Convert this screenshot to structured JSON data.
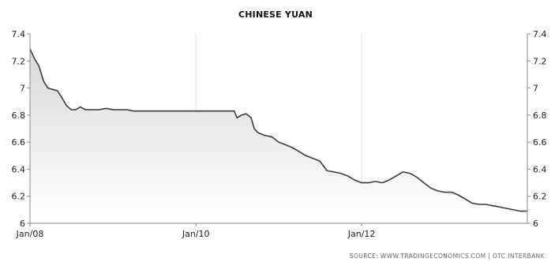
{
  "chart_data": {
    "type": "area",
    "title": "CHINESE YUAN",
    "source_label": "SOURCE: WWW.TRADINGECONOMICS.COM  |  OTC INTERBANK",
    "x_range": [
      "2008-01-01",
      "2013-12-31"
    ],
    "ylim": [
      6,
      7.4
    ],
    "y_ticks": [
      "6",
      "6.2",
      "6.4",
      "6.6",
      "6.8",
      "7",
      "7.2",
      "7.4"
    ],
    "x_ticks": [
      {
        "date": "2008-01-01",
        "label": "Jan/08"
      },
      {
        "date": "2010-01-01",
        "label": "Jan/10"
      },
      {
        "date": "2012-01-01",
        "label": "Jan/12"
      }
    ],
    "y_axis_left": true,
    "y_axis_right": true,
    "grid": "vertical",
    "colors": {
      "line": "#3a3a3a",
      "fill_top": "#d9d9d9",
      "fill_bottom": "#ffffff",
      "grid": "#e3e3e3",
      "axis": "#888888"
    },
    "series": [
      {
        "x": [
          "2008-01-01",
          "2008-01-20",
          "2008-02-10",
          "2008-03-01",
          "2008-03-20",
          "2008-04-10",
          "2008-05-01",
          "2008-05-20",
          "2008-06-10",
          "2008-07-01",
          "2008-07-20",
          "2008-08-10",
          "2008-09-01",
          "2008-10-01",
          "2008-11-01",
          "2008-12-01",
          "2009-01-01",
          "2009-02-01",
          "2009-03-01",
          "2009-04-01",
          "2009-05-01",
          "2009-06-01",
          "2009-07-01",
          "2009-08-01",
          "2009-09-01",
          "2009-10-01",
          "2009-11-01",
          "2009-12-01",
          "2010-01-01",
          "2010-03-01",
          "2010-05-01",
          "2010-06-01",
          "2010-06-19",
          "2010-07-01",
          "2010-07-20",
          "2010-08-10",
          "2010-09-01",
          "2010-09-15",
          "2010-10-01",
          "2010-11-01",
          "2010-12-01",
          "2011-01-01",
          "2011-02-01",
          "2011-03-01",
          "2011-04-01",
          "2011-05-01",
          "2011-06-01",
          "2011-07-01",
          "2011-08-01",
          "2011-09-01",
          "2011-10-01",
          "2011-11-01",
          "2011-12-01",
          "2012-01-01",
          "2012-02-01",
          "2012-03-01",
          "2012-04-01",
          "2012-05-01",
          "2012-06-01",
          "2012-07-01",
          "2012-08-01",
          "2012-09-01",
          "2012-10-01",
          "2012-11-01",
          "2012-12-01",
          "2013-01-01",
          "2013-02-01",
          "2013-03-01",
          "2013-04-01",
          "2013-05-01",
          "2013-06-01",
          "2013-07-01",
          "2013-08-01",
          "2013-09-01",
          "2013-10-01",
          "2013-11-01",
          "2013-12-01",
          "2013-12-31"
        ],
        "values": [
          7.29,
          7.22,
          7.16,
          7.05,
          7.0,
          6.99,
          6.98,
          6.93,
          6.87,
          6.84,
          6.84,
          6.86,
          6.84,
          6.84,
          6.84,
          6.85,
          6.84,
          6.84,
          6.84,
          6.83,
          6.83,
          6.83,
          6.83,
          6.83,
          6.83,
          6.83,
          6.83,
          6.83,
          6.83,
          6.83,
          6.83,
          6.83,
          6.83,
          6.78,
          6.8,
          6.81,
          6.78,
          6.7,
          6.67,
          6.65,
          6.64,
          6.6,
          6.58,
          6.56,
          6.53,
          6.5,
          6.48,
          6.46,
          6.39,
          6.38,
          6.37,
          6.35,
          6.32,
          6.3,
          6.3,
          6.31,
          6.3,
          6.32,
          6.35,
          6.38,
          6.37,
          6.34,
          6.3,
          6.26,
          6.24,
          6.23,
          6.23,
          6.21,
          6.18,
          6.15,
          6.14,
          6.14,
          6.13,
          6.12,
          6.11,
          6.1,
          6.09,
          6.09
        ]
      }
    ]
  }
}
